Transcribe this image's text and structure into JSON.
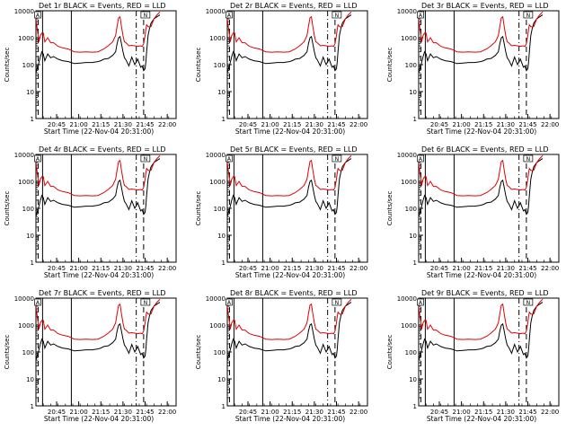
{
  "chart_data": [
    {
      "type": "line",
      "title": "Det 1r BLACK = Events, RED = LLD",
      "detector": "1r"
    },
    {
      "type": "line",
      "title": "Det 2r BLACK = Events, RED = LLD",
      "detector": "2r"
    },
    {
      "type": "line",
      "title": "Det 3r BLACK = Events, RED = LLD",
      "detector": "3r"
    },
    {
      "type": "line",
      "title": "Det 4r BLACK = Events, RED = LLD",
      "detector": "4r"
    },
    {
      "type": "line",
      "title": "Det 5r BLACK = Events, RED = LLD",
      "detector": "5r"
    },
    {
      "type": "line",
      "title": "Det 6r BLACK = Events, RED = LLD",
      "detector": "6r"
    },
    {
      "type": "line",
      "title": "Det 7r BLACK = Events, RED = LLD",
      "detector": "7r"
    },
    {
      "type": "line",
      "title": "Det 8r BLACK = Events, RED = LLD",
      "detector": "8r"
    },
    {
      "type": "line",
      "title": "Det 9r BLACK = Events, RED = LLD",
      "detector": "9r"
    }
  ],
  "common": {
    "ylabel": "Counts/sec",
    "xlabel": "Start Time (22-Nov-04 20:31:00)",
    "scale": "log",
    "ylim": [
      1,
      10000
    ],
    "ytick_labels": [
      "1",
      "10",
      "100",
      "1000",
      "10000"
    ],
    "x_ticks_min": [
      14,
      29,
      44,
      59,
      74,
      89
    ],
    "xtick_labels": [
      "20:45",
      "21:00",
      "21:15",
      "21:30",
      "21:45",
      "22:00"
    ],
    "xlim_min": [
      0,
      95
    ],
    "marker_a": "A",
    "marker_n": "N",
    "series_colors": {
      "events": "#000000",
      "lld": "#e00000"
    },
    "x_min": [
      0,
      2,
      3,
      4,
      5,
      6,
      8,
      10,
      12,
      15,
      18,
      22,
      26,
      30,
      34,
      38,
      42,
      44,
      46,
      49,
      52,
      54,
      55,
      56,
      57,
      58,
      59,
      60,
      61,
      63,
      65,
      67,
      69,
      71,
      72,
      73,
      74,
      74.5,
      75,
      76,
      77,
      78,
      80,
      82,
      84
    ],
    "lld": [
      5000,
      700,
      1200,
      1500,
      1500,
      700,
      1000,
      650,
      650,
      480,
      420,
      380,
      300,
      290,
      300,
      290,
      300,
      340,
      380,
      500,
      700,
      1200,
      2600,
      5500,
      6000,
      2600,
      1200,
      700,
      650,
      500,
      520,
      500,
      480,
      500,
      470,
      600,
      1200,
      2000,
      3000,
      2600,
      2500,
      2600,
      5000,
      7000,
      9000
    ],
    "events": [
      50,
      120,
      200,
      300,
      250,
      140,
      250,
      180,
      200,
      160,
      140,
      130,
      110,
      115,
      120,
      120,
      130,
      140,
      160,
      170,
      220,
      300,
      600,
      1000,
      1100,
      600,
      300,
      180,
      150,
      90,
      190,
      100,
      160,
      80,
      90,
      60,
      70,
      120,
      300,
      1200,
      2200,
      3500,
      5000,
      6000,
      7000
    ],
    "vlines": [
      {
        "t": 1.5,
        "style": "dash"
      },
      {
        "t": 4.5,
        "style": "solid"
      },
      {
        "t": 24,
        "style": "solid"
      },
      {
        "t": 68,
        "style": "dashdot"
      },
      {
        "t": 73,
        "style": "dash"
      }
    ]
  }
}
